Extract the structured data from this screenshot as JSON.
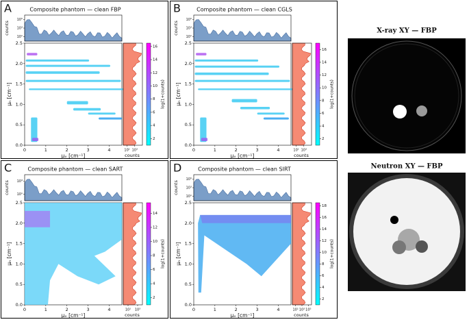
{
  "panels": [
    {
      "letter": "A",
      "title": "Composite phantom — clean FBP",
      "x_label": "μₓ [cm⁻¹]",
      "y_label": "μₙ [cm⁻¹]",
      "xlim": [
        0,
        4.6
      ],
      "xticks": [
        0,
        1,
        2,
        3,
        4
      ],
      "ylim": [
        0,
        2.5
      ],
      "yticks": [
        {
          "value": 0,
          "label": "0.0"
        },
        {
          "value": 0.5,
          "label": "0.5"
        },
        {
          "value": 1,
          "label": "1.0"
        },
        {
          "value": 1.5,
          "label": "1.5"
        },
        {
          "value": 2,
          "label": "2.0"
        },
        {
          "value": 2.5,
          "label": "2.5"
        }
      ],
      "top_ylabel": "counts",
      "top_ylim": [
        1,
        1000000
      ],
      "top_yticks": [
        {
          "value": 10,
          "label": "10¹"
        },
        {
          "value": 1000,
          "label": "10³"
        },
        {
          "value": 100000,
          "label": "10⁵"
        }
      ],
      "right_xlabel": "counts",
      "right_xlim": [
        1,
        100000
      ],
      "right_xticks": [
        {
          "value": 10,
          "label": "10¹"
        },
        {
          "value": 1000,
          "label": "10³"
        }
      ],
      "colorbar_label": "log(1+counts)",
      "colorbar_lim": [
        1,
        16.5
      ],
      "colorbar_ticks": [
        2,
        4,
        6,
        8,
        10,
        12,
        14,
        16
      ]
    },
    {
      "letter": "B",
      "title": "Composite phantom — clean CGLS",
      "x_label": "μₓ [cm⁻¹]",
      "y_label": "μₙ [cm⁻¹]",
      "xlim": [
        0,
        4.6
      ],
      "xticks": [
        0,
        1,
        2,
        3,
        4
      ],
      "ylim": [
        0,
        2.5
      ],
      "yticks": [
        {
          "value": 0,
          "label": "0.0"
        },
        {
          "value": 0.5,
          "label": "0.5"
        },
        {
          "value": 1,
          "label": "1.0"
        },
        {
          "value": 1.5,
          "label": "1.5"
        },
        {
          "value": 2,
          "label": "2.0"
        },
        {
          "value": 2.5,
          "label": "2.5"
        }
      ],
      "top_ylabel": "counts",
      "top_ylim": [
        1,
        1000000
      ],
      "top_yticks": [
        {
          "value": 10,
          "label": "10¹"
        },
        {
          "value": 1000,
          "label": "10³"
        },
        {
          "value": 100000,
          "label": "10⁵"
        }
      ],
      "right_xlabel": "counts",
      "right_xlim": [
        1,
        100000
      ],
      "right_xticks": [
        {
          "value": 10,
          "label": "10¹"
        },
        {
          "value": 1000,
          "label": "10³"
        }
      ],
      "colorbar_label": "log(1+counts)",
      "colorbar_lim": [
        1,
        17
      ],
      "colorbar_ticks": [
        2,
        4,
        6,
        8,
        10,
        12,
        14,
        16
      ]
    },
    {
      "letter": "C",
      "title": "Composite phantom — clean SART",
      "x_label": "μₓ [cm⁻¹]",
      "y_label": "μₙ [cm⁻¹]",
      "xlim": [
        0,
        4.6
      ],
      "xticks": [
        0,
        1,
        2,
        3,
        4
      ],
      "ylim": [
        0,
        2.5
      ],
      "yticks": [
        {
          "value": 0,
          "label": "0.0"
        },
        {
          "value": 0.5,
          "label": "0.5"
        },
        {
          "value": 1,
          "label": "1.0"
        },
        {
          "value": 1.5,
          "label": "1.5"
        },
        {
          "value": 2,
          "label": "2.0"
        },
        {
          "value": 2.5,
          "label": "2.5"
        }
      ],
      "top_ylabel": "counts",
      "top_ylim": [
        1,
        10000
      ],
      "top_yticks": [
        {
          "value": 10,
          "label": "10¹"
        },
        {
          "value": 1000,
          "label": "10³"
        }
      ],
      "right_xlabel": "counts",
      "right_xlim": [
        1,
        10000
      ],
      "right_xticks": [
        {
          "value": 10,
          "label": "10¹"
        },
        {
          "value": 1000,
          "label": "10³"
        }
      ],
      "colorbar_label": "log(1+counts)",
      "colorbar_lim": [
        1,
        15.5
      ],
      "colorbar_ticks": [
        2,
        4,
        6,
        8,
        10,
        12,
        14
      ]
    },
    {
      "letter": "D",
      "title": "Composite phantom — clean SIRT",
      "x_label": "μₓ [cm⁻¹]",
      "y_label": "μₙ [cm⁻¹]",
      "xlim": [
        0,
        4.6
      ],
      "xticks": [
        0,
        1,
        2,
        3,
        4
      ],
      "ylim": [
        0,
        2.5
      ],
      "yticks": [
        {
          "value": 0,
          "label": "0.0"
        },
        {
          "value": 0.5,
          "label": "0.5"
        },
        {
          "value": 1,
          "label": "1.0"
        },
        {
          "value": 1.5,
          "label": "1.5"
        },
        {
          "value": 2,
          "label": "2.0"
        },
        {
          "value": 2.5,
          "label": "2.5"
        }
      ],
      "top_ylabel": "counts",
      "top_ylim": [
        1,
        1000000
      ],
      "top_yticks": [
        {
          "value": 10,
          "label": "10¹"
        },
        {
          "value": 1000,
          "label": "10³"
        },
        {
          "value": 100000,
          "label": "10⁵"
        }
      ],
      "right_xlabel": "counts",
      "right_xlim": [
        1,
        1000000
      ],
      "right_xticks": [
        {
          "value": 10,
          "label": "10¹"
        },
        {
          "value": 1000,
          "label": "10³"
        },
        {
          "value": 100000,
          "label": "10⁵"
        }
      ],
      "colorbar_label": "log(1+counts)",
      "colorbar_lim": [
        1,
        18.5
      ],
      "colorbar_ticks": [
        2,
        4,
        6,
        8,
        10,
        12,
        14,
        16,
        18
      ]
    }
  ],
  "images": [
    {
      "title": "X-ray XY — FBP"
    },
    {
      "title": "Neutron XY — FBP"
    }
  ]
}
